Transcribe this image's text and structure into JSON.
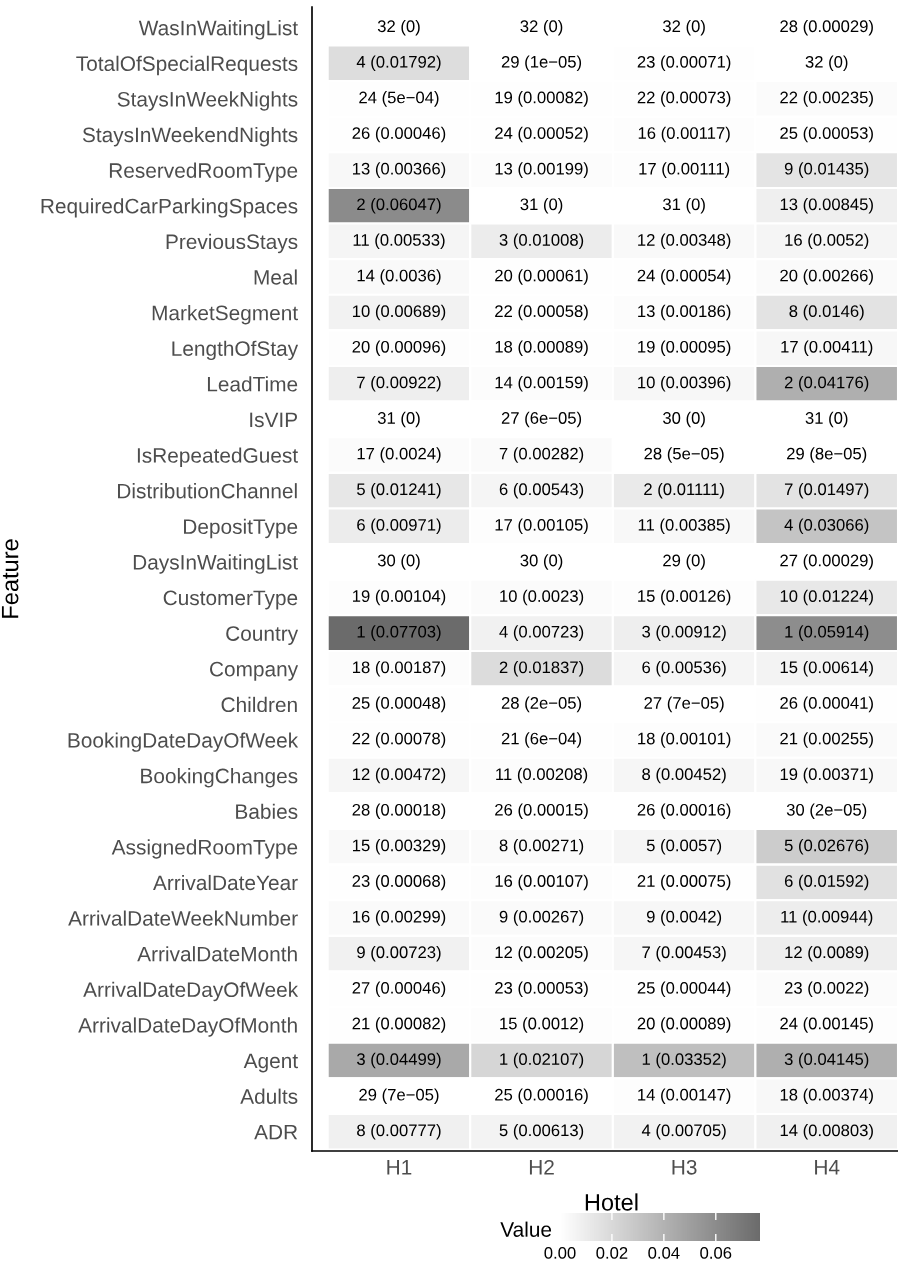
{
  "chart_data": {
    "type": "heatmap",
    "xlabel": "Hotel",
    "ylabel": "Feature",
    "clabel": "Value",
    "categories": [
      "H1",
      "H2",
      "H3",
      "H4"
    ],
    "y_categories": [
      "WasInWaitingList",
      "TotalOfSpecialRequests",
      "StaysInWeekNights",
      "StaysInWeekendNights",
      "ReservedRoomType",
      "RequiredCarParkingSpaces",
      "PreviousStays",
      "Meal",
      "MarketSegment",
      "LengthOfStay",
      "LeadTime",
      "IsVIP",
      "IsRepeatedGuest",
      "DistributionChannel",
      "DepositType",
      "DaysInWaitingList",
      "CustomerType",
      "Country",
      "Company",
      "Children",
      "BookingDateDayOfWeek",
      "BookingChanges",
      "Babies",
      "AssignedRoomType",
      "ArrivalDateYear",
      "ArrivalDateWeekNumber",
      "ArrivalDateMonth",
      "ArrivalDateDayOfWeek",
      "ArrivalDateDayOfMonth",
      "Agent",
      "Adults",
      "ADR"
    ],
    "cells": [
      [
        0,
        0,
        0,
        0.00029
      ],
      [
        0.01792,
        1e-05,
        0.00071,
        0
      ],
      [
        0.0005,
        0.00082,
        0.00073,
        0.00235
      ],
      [
        0.00046,
        0.00052,
        0.00117,
        0.00053
      ],
      [
        0.00366,
        0.00199,
        0.00111,
        0.01435
      ],
      [
        0.06047,
        0,
        0,
        0.00845
      ],
      [
        0.00533,
        0.01008,
        0.00348,
        0.0052
      ],
      [
        0.0036,
        0.00061,
        0.00054,
        0.00266
      ],
      [
        0.00689,
        0.00058,
        0.00186,
        0.0146
      ],
      [
        0.00096,
        0.00089,
        0.00095,
        0.00411
      ],
      [
        0.00922,
        0.00159,
        0.00396,
        0.04176
      ],
      [
        0,
        6e-05,
        0,
        0
      ],
      [
        0.0024,
        0.00282,
        5e-05,
        8e-05
      ],
      [
        0.01241,
        0.00543,
        0.01111,
        0.01497
      ],
      [
        0.00971,
        0.00105,
        0.00385,
        0.03066
      ],
      [
        0,
        0,
        0,
        0.00029
      ],
      [
        0.00104,
        0.0023,
        0.00126,
        0.01224
      ],
      [
        0.07703,
        0.00723,
        0.00912,
        0.05914
      ],
      [
        0.00187,
        0.01837,
        0.00536,
        0.00614
      ],
      [
        0.00048,
        2e-05,
        7e-05,
        0.00041
      ],
      [
        0.00078,
        0.0006,
        0.00101,
        0.00255
      ],
      [
        0.00472,
        0.00208,
        0.00452,
        0.00371
      ],
      [
        0.00018,
        0.00015,
        0.00016,
        2e-05
      ],
      [
        0.00329,
        0.00271,
        0.0057,
        0.02676
      ],
      [
        0.00068,
        0.00107,
        0.00075,
        0.01592
      ],
      [
        0.00299,
        0.00267,
        0.0042,
        0.00944
      ],
      [
        0.00723,
        0.00205,
        0.00453,
        0.0089
      ],
      [
        0.00046,
        0.00053,
        0.00044,
        0.0022
      ],
      [
        0.00082,
        0.0012,
        0.00089,
        0.00145
      ],
      [
        0.04499,
        0.02107,
        0.03352,
        0.04145
      ],
      [
        7e-05,
        0.00016,
        0.00147,
        0.00374
      ],
      [
        0.00777,
        0.00613,
        0.00705,
        0.00803
      ]
    ],
    "cell_labels": [
      [
        "32 (0)",
        "32 (0)",
        "32 (0)",
        "28 (0.00029)"
      ],
      [
        "4 (0.01792)",
        "29 (1e−05)",
        "23 (0.00071)",
        "32 (0)"
      ],
      [
        "24 (5e−04)",
        "19 (0.00082)",
        "22 (0.00073)",
        "22 (0.00235)"
      ],
      [
        "26 (0.00046)",
        "24 (0.00052)",
        "16 (0.00117)",
        "25 (0.00053)"
      ],
      [
        "13 (0.00366)",
        "13 (0.00199)",
        "17 (0.00111)",
        "9 (0.01435)"
      ],
      [
        "2 (0.06047)",
        "31 (0)",
        "31 (0)",
        "13 (0.00845)"
      ],
      [
        "11 (0.00533)",
        "3 (0.01008)",
        "12 (0.00348)",
        "16 (0.0052)"
      ],
      [
        "14 (0.0036)",
        "20 (0.00061)",
        "24 (0.00054)",
        "20 (0.00266)"
      ],
      [
        "10 (0.00689)",
        "22 (0.00058)",
        "13 (0.00186)",
        "8 (0.0146)"
      ],
      [
        "20 (0.00096)",
        "18 (0.00089)",
        "19 (0.00095)",
        "17 (0.00411)"
      ],
      [
        "7 (0.00922)",
        "14 (0.00159)",
        "10 (0.00396)",
        "2 (0.04176)"
      ],
      [
        "31 (0)",
        "27 (6e−05)",
        "30 (0)",
        "31 (0)"
      ],
      [
        "17 (0.0024)",
        "7 (0.00282)",
        "28 (5e−05)",
        "29 (8e−05)"
      ],
      [
        "5 (0.01241)",
        "6 (0.00543)",
        "2 (0.01111)",
        "7 (0.01497)"
      ],
      [
        "6 (0.00971)",
        "17 (0.00105)",
        "11 (0.00385)",
        "4 (0.03066)"
      ],
      [
        "30 (0)",
        "30 (0)",
        "29 (0)",
        "27 (0.00029)"
      ],
      [
        "19 (0.00104)",
        "10 (0.0023)",
        "15 (0.00126)",
        "10 (0.01224)"
      ],
      [
        "1 (0.07703)",
        "4 (0.00723)",
        "3 (0.00912)",
        "1 (0.05914)"
      ],
      [
        "18 (0.00187)",
        "2 (0.01837)",
        "6 (0.00536)",
        "15 (0.00614)"
      ],
      [
        "25 (0.00048)",
        "28 (2e−05)",
        "27 (7e−05)",
        "26 (0.00041)"
      ],
      [
        "22 (0.00078)",
        "21 (6e−04)",
        "18 (0.00101)",
        "21 (0.00255)"
      ],
      [
        "12 (0.00472)",
        "11 (0.00208)",
        "8 (0.00452)",
        "19 (0.00371)"
      ],
      [
        "28 (0.00018)",
        "26 (0.00015)",
        "26 (0.00016)",
        "30 (2e−05)"
      ],
      [
        "15 (0.00329)",
        "8 (0.00271)",
        "5 (0.0057)",
        "5 (0.02676)"
      ],
      [
        "23 (0.00068)",
        "16 (0.00107)",
        "21 (0.00075)",
        "6 (0.01592)"
      ],
      [
        "16 (0.00299)",
        "9 (0.00267)",
        "9 (0.0042)",
        "11 (0.00944)"
      ],
      [
        "9 (0.00723)",
        "12 (0.00205)",
        "7 (0.00453)",
        "12 (0.0089)"
      ],
      [
        "27 (0.00046)",
        "23 (0.00053)",
        "25 (0.00044)",
        "23 (0.0022)"
      ],
      [
        "21 (0.00082)",
        "15 (0.0012)",
        "20 (0.00089)",
        "24 (0.00145)"
      ],
      [
        "3 (0.04499)",
        "1 (0.02107)",
        "1 (0.03352)",
        "3 (0.04145)"
      ],
      [
        "29 (7e−05)",
        "25 (0.00016)",
        "14 (0.00147)",
        "18 (0.00374)"
      ],
      [
        "8 (0.00777)",
        "5 (0.00613)",
        "4 (0.00705)",
        "14 (0.00803)"
      ]
    ],
    "colors": [
      "#ffffff",
      "#6b6b6b"
    ],
    "clim": [
      0,
      0.07703
    ],
    "cticks": [
      {
        "value": 0,
        "label": "0.00"
      },
      {
        "value": 0.02,
        "label": "0.02"
      },
      {
        "value": 0.04,
        "label": "0.04"
      },
      {
        "value": 0.06,
        "label": "0.06"
      }
    ]
  }
}
